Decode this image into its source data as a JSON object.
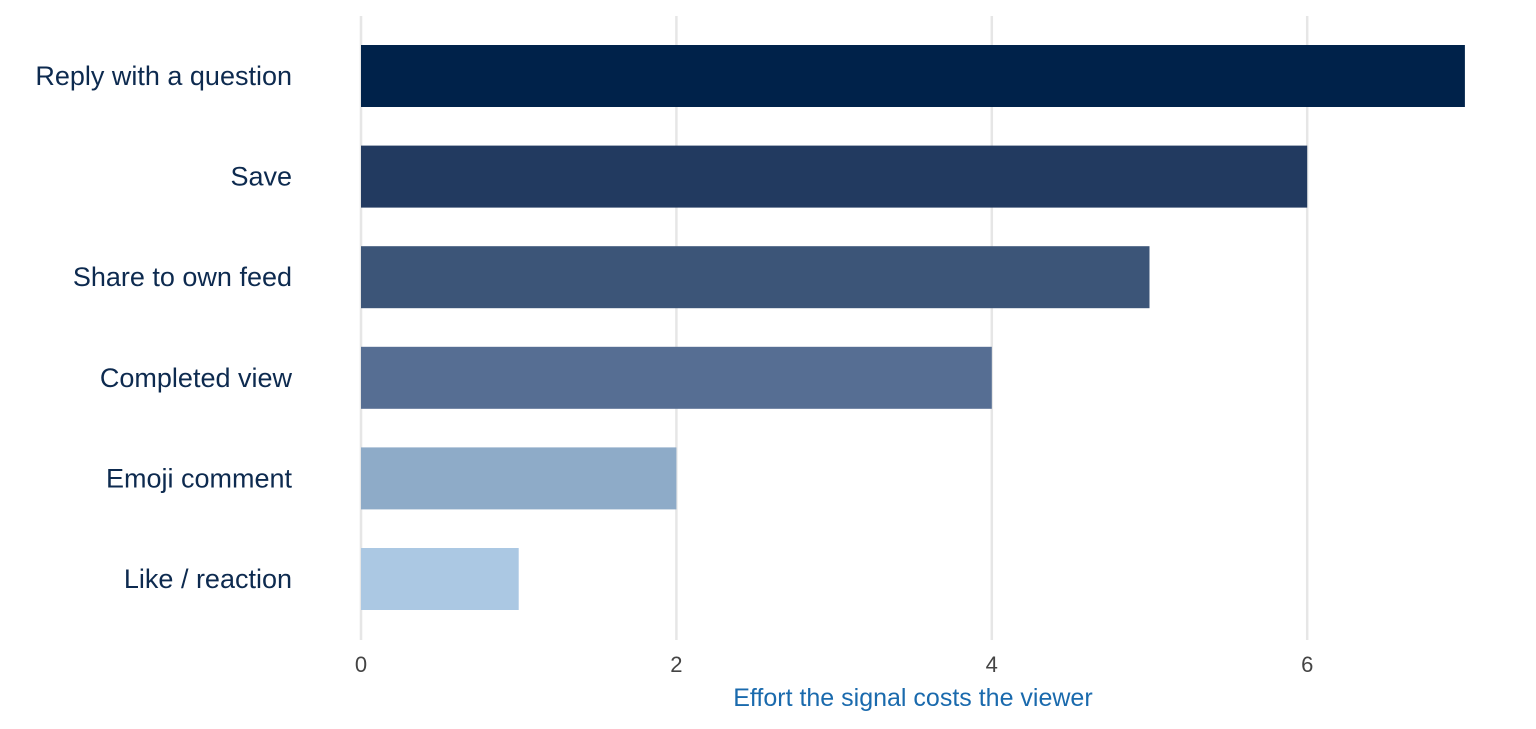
{
  "chart_data": {
    "type": "bar",
    "orientation": "horizontal",
    "categories": [
      "Reply with a question",
      "Save",
      "Share to own feed",
      "Completed view",
      "Emoji comment",
      "Like / reaction"
    ],
    "values": [
      7,
      6,
      5,
      4,
      2,
      1
    ],
    "colors": [
      "#00224a",
      "#223a60",
      "#3c5578",
      "#566e93",
      "#8eabc8",
      "#abc8e3"
    ],
    "title": "",
    "xlabel": "Effort the signal costs the viewer",
    "ylabel": "",
    "xlim": [
      0,
      7
    ],
    "xticks": [
      0,
      2,
      4,
      6
    ],
    "grid": "vertical",
    "legend": "none"
  }
}
